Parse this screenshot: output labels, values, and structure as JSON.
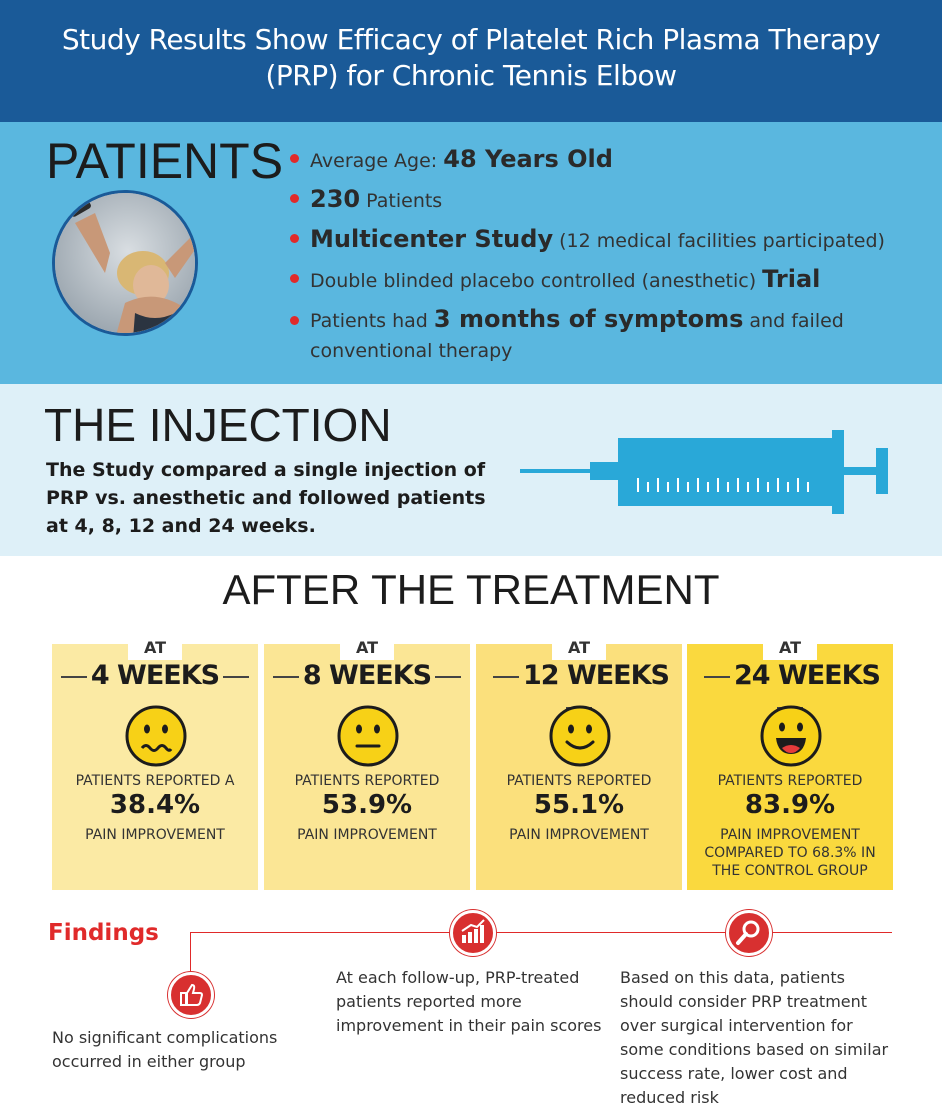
{
  "header": {
    "title_line1": "Study Results Show Efficacy of Platelet Rich Plasma Therapy",
    "title_line2": "(PRP) for Chronic Tennis Elbow"
  },
  "patients": {
    "heading": "PATIENTS",
    "items": [
      {
        "pre": "Average Age: ",
        "big": "48 Years Old",
        "post": ""
      },
      {
        "pre": "",
        "big": "230",
        "post": " Patients"
      },
      {
        "pre": "",
        "big": "Multicenter Study",
        "post": " (12 medical facilities participated)"
      },
      {
        "pre": "Double blinded placebo controlled (anesthetic) ",
        "big": "Trial",
        "post": ""
      },
      {
        "pre": "Patients had ",
        "big": "3 months of symptoms",
        "post": " and failed conventional therapy"
      }
    ]
  },
  "injection": {
    "heading": "THE INJECTION",
    "text": "The Study compared a single injection of PRP vs. anesthetic and followed patients at 4, 8, 12 and 24 weeks."
  },
  "after": {
    "heading": "AFTER THE TREATMENT",
    "cards": [
      {
        "at": "AT",
        "weeks": "4 WEEKS",
        "line1": "PATIENTS REPORTED A",
        "pct": "38.4%",
        "line2": "PAIN IMPROVEMENT",
        "color": "#fbeaa4",
        "face": "wavy"
      },
      {
        "at": "AT",
        "weeks": "8 WEEKS",
        "line1": "PATIENTS REPORTED",
        "pct": "53.9%",
        "line2": "PAIN IMPROVEMENT",
        "color": "#fbe695",
        "face": "flat"
      },
      {
        "at": "AT",
        "weeks": "12 WEEKS",
        "line1": "PATIENTS REPORTED",
        "pct": "55.1%",
        "line2": "PAIN IMPROVEMENT",
        "color": "#fbe07c",
        "face": "smile"
      },
      {
        "at": "AT",
        "weeks": "24 WEEKS",
        "line1": "PATIENTS REPORTED",
        "pct": "83.9%",
        "line2": "PAIN IMPROVEMENT COMPARED TO 68.3% IN THE CONTROL GROUP",
        "color": "#fad93e",
        "face": "grin"
      }
    ]
  },
  "findings": {
    "heading": "Findings",
    "items": [
      {
        "text": "No significant complications occurred in either group",
        "icon": "thumbs-up-icon"
      },
      {
        "text": "At each follow-up, PRP-treated patients reported more improvement in their pain scores",
        "icon": "bar-chart-icon"
      },
      {
        "text": "Based on this data, patients should consider PRP treatment over surgical intervention for some conditions based on similar success rate, lower cost and reduced risk",
        "icon": "magnifier-icon"
      }
    ]
  }
}
